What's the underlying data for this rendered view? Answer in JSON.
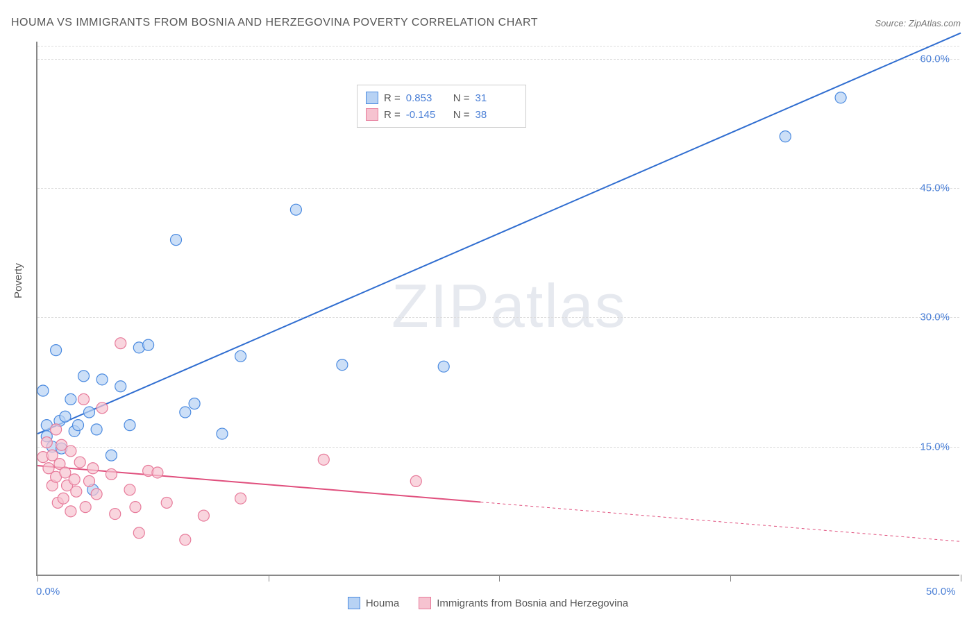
{
  "title": "HOUMA VS IMMIGRANTS FROM BOSNIA AND HERZEGOVINA POVERTY CORRELATION CHART",
  "source_label": "Source: ZipAtlas.com",
  "y_axis_label": "Poverty",
  "watermark": "ZIPatlas",
  "chart": {
    "type": "scatter",
    "background_color": "#ffffff",
    "grid_color": "#dddddd",
    "axis_color": "#888888",
    "xlim": [
      0,
      50
    ],
    "ylim": [
      0,
      62
    ],
    "x_ticks": [
      0,
      50
    ],
    "x_tick_labels": [
      "0.0%",
      "50.0%"
    ],
    "y_ticks": [
      15,
      30,
      45,
      60
    ],
    "y_tick_labels": [
      "15.0%",
      "30.0%",
      "45.0%",
      "60.0%"
    ],
    "tick_label_color": "#4a7fd6",
    "tick_fontsize": 15,
    "axis_label_color": "#555555",
    "axis_label_fontsize": 15,
    "title_fontsize": 16,
    "title_color": "#555555",
    "marker_radius": 8,
    "marker_stroke_width": 1.2,
    "line_width": 2,
    "dashed_pattern": "4,4",
    "series": [
      {
        "name": "Houma",
        "fill_color": "#b7d2f4",
        "stroke_color": "#4a8ae0",
        "line_color": "#2f6dd0",
        "r_value": "0.853",
        "n_value": "31",
        "regression": {
          "x0": 0,
          "y0": 16.5,
          "x1": 50,
          "y1": 63,
          "extrapolate_from_x": null
        },
        "points": [
          [
            0.3,
            21.5
          ],
          [
            0.5,
            17.5
          ],
          [
            0.5,
            16.2
          ],
          [
            0.8,
            15.0
          ],
          [
            1.0,
            26.2
          ],
          [
            1.2,
            18.0
          ],
          [
            1.3,
            14.8
          ],
          [
            1.5,
            18.5
          ],
          [
            1.8,
            20.5
          ],
          [
            2.0,
            16.8
          ],
          [
            2.2,
            17.5
          ],
          [
            2.5,
            23.2
          ],
          [
            2.8,
            19.0
          ],
          [
            3.0,
            10.0
          ],
          [
            3.2,
            17.0
          ],
          [
            3.5,
            22.8
          ],
          [
            4.0,
            14.0
          ],
          [
            4.5,
            22.0
          ],
          [
            5.0,
            17.5
          ],
          [
            5.5,
            26.5
          ],
          [
            6.0,
            26.8
          ],
          [
            7.5,
            39.0
          ],
          [
            8.0,
            19.0
          ],
          [
            8.5,
            20.0
          ],
          [
            10.0,
            16.5
          ],
          [
            11.0,
            25.5
          ],
          [
            14.0,
            42.5
          ],
          [
            16.5,
            24.5
          ],
          [
            22.0,
            24.3
          ],
          [
            40.5,
            51.0
          ],
          [
            43.5,
            55.5
          ]
        ]
      },
      {
        "name": "Immigrants from Bosnia and Herzegovina",
        "fill_color": "#f6c3d0",
        "stroke_color": "#e77a9a",
        "line_color": "#e04f7d",
        "r_value": "-0.145",
        "n_value": "38",
        "regression": {
          "x0": 0,
          "y0": 12.8,
          "x1": 50,
          "y1": 4.0,
          "extrapolate_from_x": 24
        },
        "points": [
          [
            0.3,
            13.8
          ],
          [
            0.5,
            15.5
          ],
          [
            0.6,
            12.5
          ],
          [
            0.8,
            14.0
          ],
          [
            0.8,
            10.5
          ],
          [
            1.0,
            17.0
          ],
          [
            1.0,
            11.5
          ],
          [
            1.1,
            8.5
          ],
          [
            1.2,
            13.0
          ],
          [
            1.3,
            15.2
          ],
          [
            1.4,
            9.0
          ],
          [
            1.5,
            12.0
          ],
          [
            1.6,
            10.5
          ],
          [
            1.8,
            14.5
          ],
          [
            1.8,
            7.5
          ],
          [
            2.0,
            11.2
          ],
          [
            2.1,
            9.8
          ],
          [
            2.3,
            13.2
          ],
          [
            2.5,
            20.5
          ],
          [
            2.6,
            8.0
          ],
          [
            2.8,
            11.0
          ],
          [
            3.0,
            12.5
          ],
          [
            3.2,
            9.5
          ],
          [
            3.5,
            19.5
          ],
          [
            4.0,
            11.8
          ],
          [
            4.2,
            7.2
          ],
          [
            4.5,
            27.0
          ],
          [
            5.0,
            10.0
          ],
          [
            5.3,
            8.0
          ],
          [
            5.5,
            5.0
          ],
          [
            6.0,
            12.2
          ],
          [
            6.5,
            12.0
          ],
          [
            7.0,
            8.5
          ],
          [
            8.0,
            4.2
          ],
          [
            9.0,
            7.0
          ],
          [
            11.0,
            9.0
          ],
          [
            15.5,
            13.5
          ],
          [
            20.5,
            11.0
          ]
        ]
      }
    ],
    "legend_top": {
      "r_label": "R =",
      "n_label": "N ="
    },
    "legend_bottom": [
      {
        "label": "Houma",
        "fill": "#b7d2f4",
        "stroke": "#4a8ae0"
      },
      {
        "label": "Immigrants from Bosnia and Herzegovina",
        "fill": "#f6c3d0",
        "stroke": "#e77a9a"
      }
    ]
  }
}
